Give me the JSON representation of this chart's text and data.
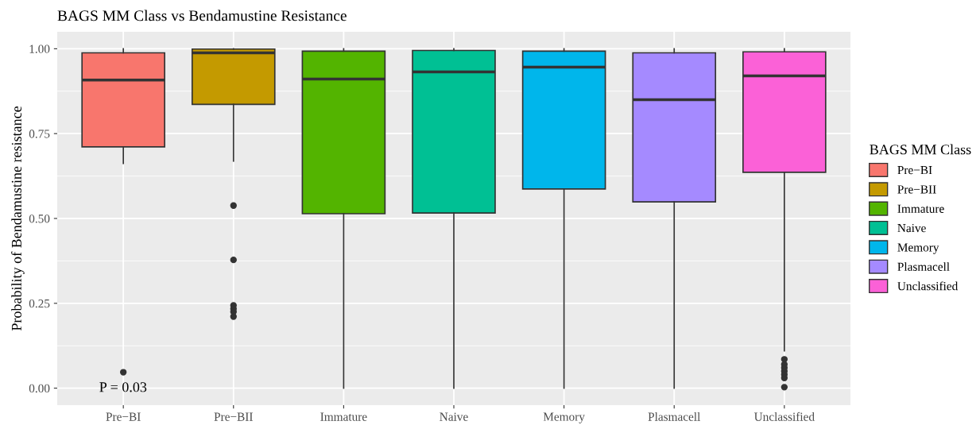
{
  "chart_data": {
    "type": "box",
    "title": "BAGS MM Class vs Bendamustine Resistance",
    "ylabel": "Probability of Bendamustine resistance",
    "legend_title": "BAGS MM Class",
    "categories": [
      "Pre−BI",
      "Pre−BII",
      "Immature",
      "Naive",
      "Memory",
      "Plasmacell",
      "Unclassified"
    ],
    "series": [
      {
        "name": "Pre−BI",
        "color": "#f8766d",
        "boxes": [
          {
            "low": 0.662,
            "q1": 0.711,
            "median": 0.908,
            "q3": 0.988,
            "high": 1.0,
            "outliers": [
              0.047
            ]
          },
          null,
          null,
          null,
          null,
          null,
          null
        ]
      },
      {
        "name": "Pre−BII",
        "color": "#c49a00",
        "boxes": [
          null,
          {
            "low": 0.669,
            "q1": 0.836,
            "median": 0.988,
            "q3": 0.999,
            "high": 1.0,
            "outliers": [
              0.538,
              0.378,
              0.244,
              0.234,
              0.225,
              0.211
            ]
          },
          null,
          null,
          null,
          null,
          null
        ]
      },
      {
        "name": "Immature",
        "color": "#53b400",
        "boxes": [
          null,
          null,
          {
            "low": 0.0,
            "q1": 0.514,
            "median": 0.911,
            "q3": 0.993,
            "high": 1.0
          },
          null,
          null,
          null,
          null
        ]
      },
      {
        "name": "Naive",
        "color": "#00c094",
        "boxes": [
          null,
          null,
          null,
          {
            "low": 0.0,
            "q1": 0.516,
            "median": 0.932,
            "q3": 0.995,
            "high": 1.0
          },
          null,
          null,
          null
        ]
      },
      {
        "name": "Memory",
        "color": "#00b6eb",
        "boxes": [
          null,
          null,
          null,
          null,
          {
            "low": 0.0,
            "q1": 0.587,
            "median": 0.946,
            "q3": 0.993,
            "high": 1.0
          },
          null,
          null
        ]
      },
      {
        "name": "Plasmacell",
        "color": "#a58aff",
        "boxes": [
          null,
          null,
          null,
          null,
          null,
          {
            "low": 0.0,
            "q1": 0.549,
            "median": 0.85,
            "q3": 0.988,
            "high": 1.0
          },
          null
        ]
      },
      {
        "name": "Unclassified",
        "color": "#fb61d7",
        "boxes": [
          null,
          null,
          null,
          null,
          null,
          null,
          {
            "low": 0.11,
            "q1": 0.636,
            "median": 0.92,
            "q3": 0.991,
            "high": 1.0,
            "outliers": [
              0.085,
              0.07,
              0.06,
              0.05,
              0.04,
              0.03,
              0.003
            ]
          }
        ]
      }
    ],
    "ylim": [
      -0.05,
      1.05
    ],
    "yticks": [
      {
        "value": 0,
        "label": "0.00"
      },
      {
        "value": 0.25,
        "label": "0.25"
      },
      {
        "value": 0.5,
        "label": "0.50"
      },
      {
        "value": 0.75,
        "label": "0.75"
      },
      {
        "value": 1,
        "label": "1.00"
      }
    ],
    "grid": true,
    "legend": "right",
    "annotations": [
      "P = 0.03"
    ]
  }
}
